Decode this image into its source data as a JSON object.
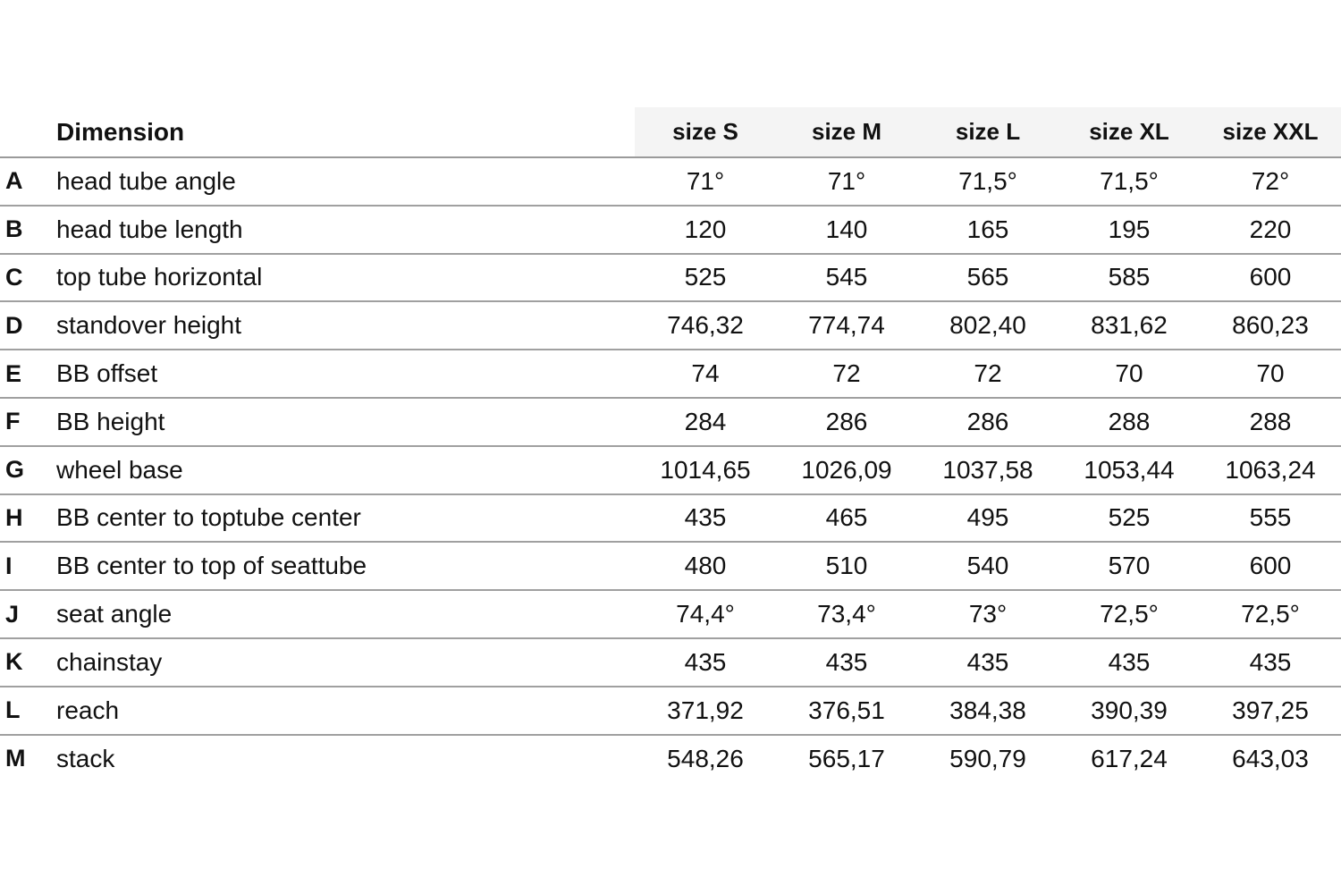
{
  "colors": {
    "background": "#ffffff",
    "text": "#111111",
    "row_line": "#a0a0a0",
    "header_line": "#9a9a9a",
    "header_band": "#f4f4f4"
  },
  "chart_data": {
    "type": "table",
    "header": {
      "label_column": "Dimension",
      "size_columns": [
        "size S",
        "size M",
        "size L",
        "size XL",
        "size XXL"
      ]
    },
    "rows": [
      {
        "letter": "A",
        "label": "head tube angle",
        "values": [
          "71°",
          "71°",
          "71,5°",
          "71,5°",
          "72°"
        ]
      },
      {
        "letter": "B",
        "label": "head tube length",
        "values": [
          "120",
          "140",
          "165",
          "195",
          "220"
        ]
      },
      {
        "letter": "C",
        "label": "top tube horizontal",
        "values": [
          "525",
          "545",
          "565",
          "585",
          "600"
        ]
      },
      {
        "letter": "D",
        "label": "standover height",
        "values": [
          "746,32",
          "774,74",
          "802,40",
          "831,62",
          "860,23"
        ]
      },
      {
        "letter": "E",
        "label": "BB offset",
        "values": [
          "74",
          "72",
          "72",
          "70",
          "70"
        ]
      },
      {
        "letter": "F",
        "label": "BB height",
        "values": [
          "284",
          "286",
          "286",
          "288",
          "288"
        ]
      },
      {
        "letter": "G",
        "label": "wheel base",
        "values": [
          "1014,65",
          "1026,09",
          "1037,58",
          "1053,44",
          "1063,24"
        ]
      },
      {
        "letter": "H",
        "label": "BB center to toptube center",
        "values": [
          "435",
          "465",
          "495",
          "525",
          "555"
        ]
      },
      {
        "letter": "I",
        "label": "BB center to top of seattube",
        "values": [
          "480",
          "510",
          "540",
          "570",
          "600"
        ]
      },
      {
        "letter": "J",
        "label": "seat angle",
        "values": [
          "74,4°",
          "73,4°",
          "73°",
          "72,5°",
          "72,5°"
        ]
      },
      {
        "letter": "K",
        "label": "chainstay",
        "values": [
          "435",
          "435",
          "435",
          "435",
          "435"
        ]
      },
      {
        "letter": "L",
        "label": "reach",
        "values": [
          "371,92",
          "376,51",
          "384,38",
          "390,39",
          "397,25"
        ]
      },
      {
        "letter": "M",
        "label": "stack",
        "values": [
          "548,26",
          "565,17",
          "590,79",
          "617,24",
          "643,03"
        ]
      }
    ]
  }
}
